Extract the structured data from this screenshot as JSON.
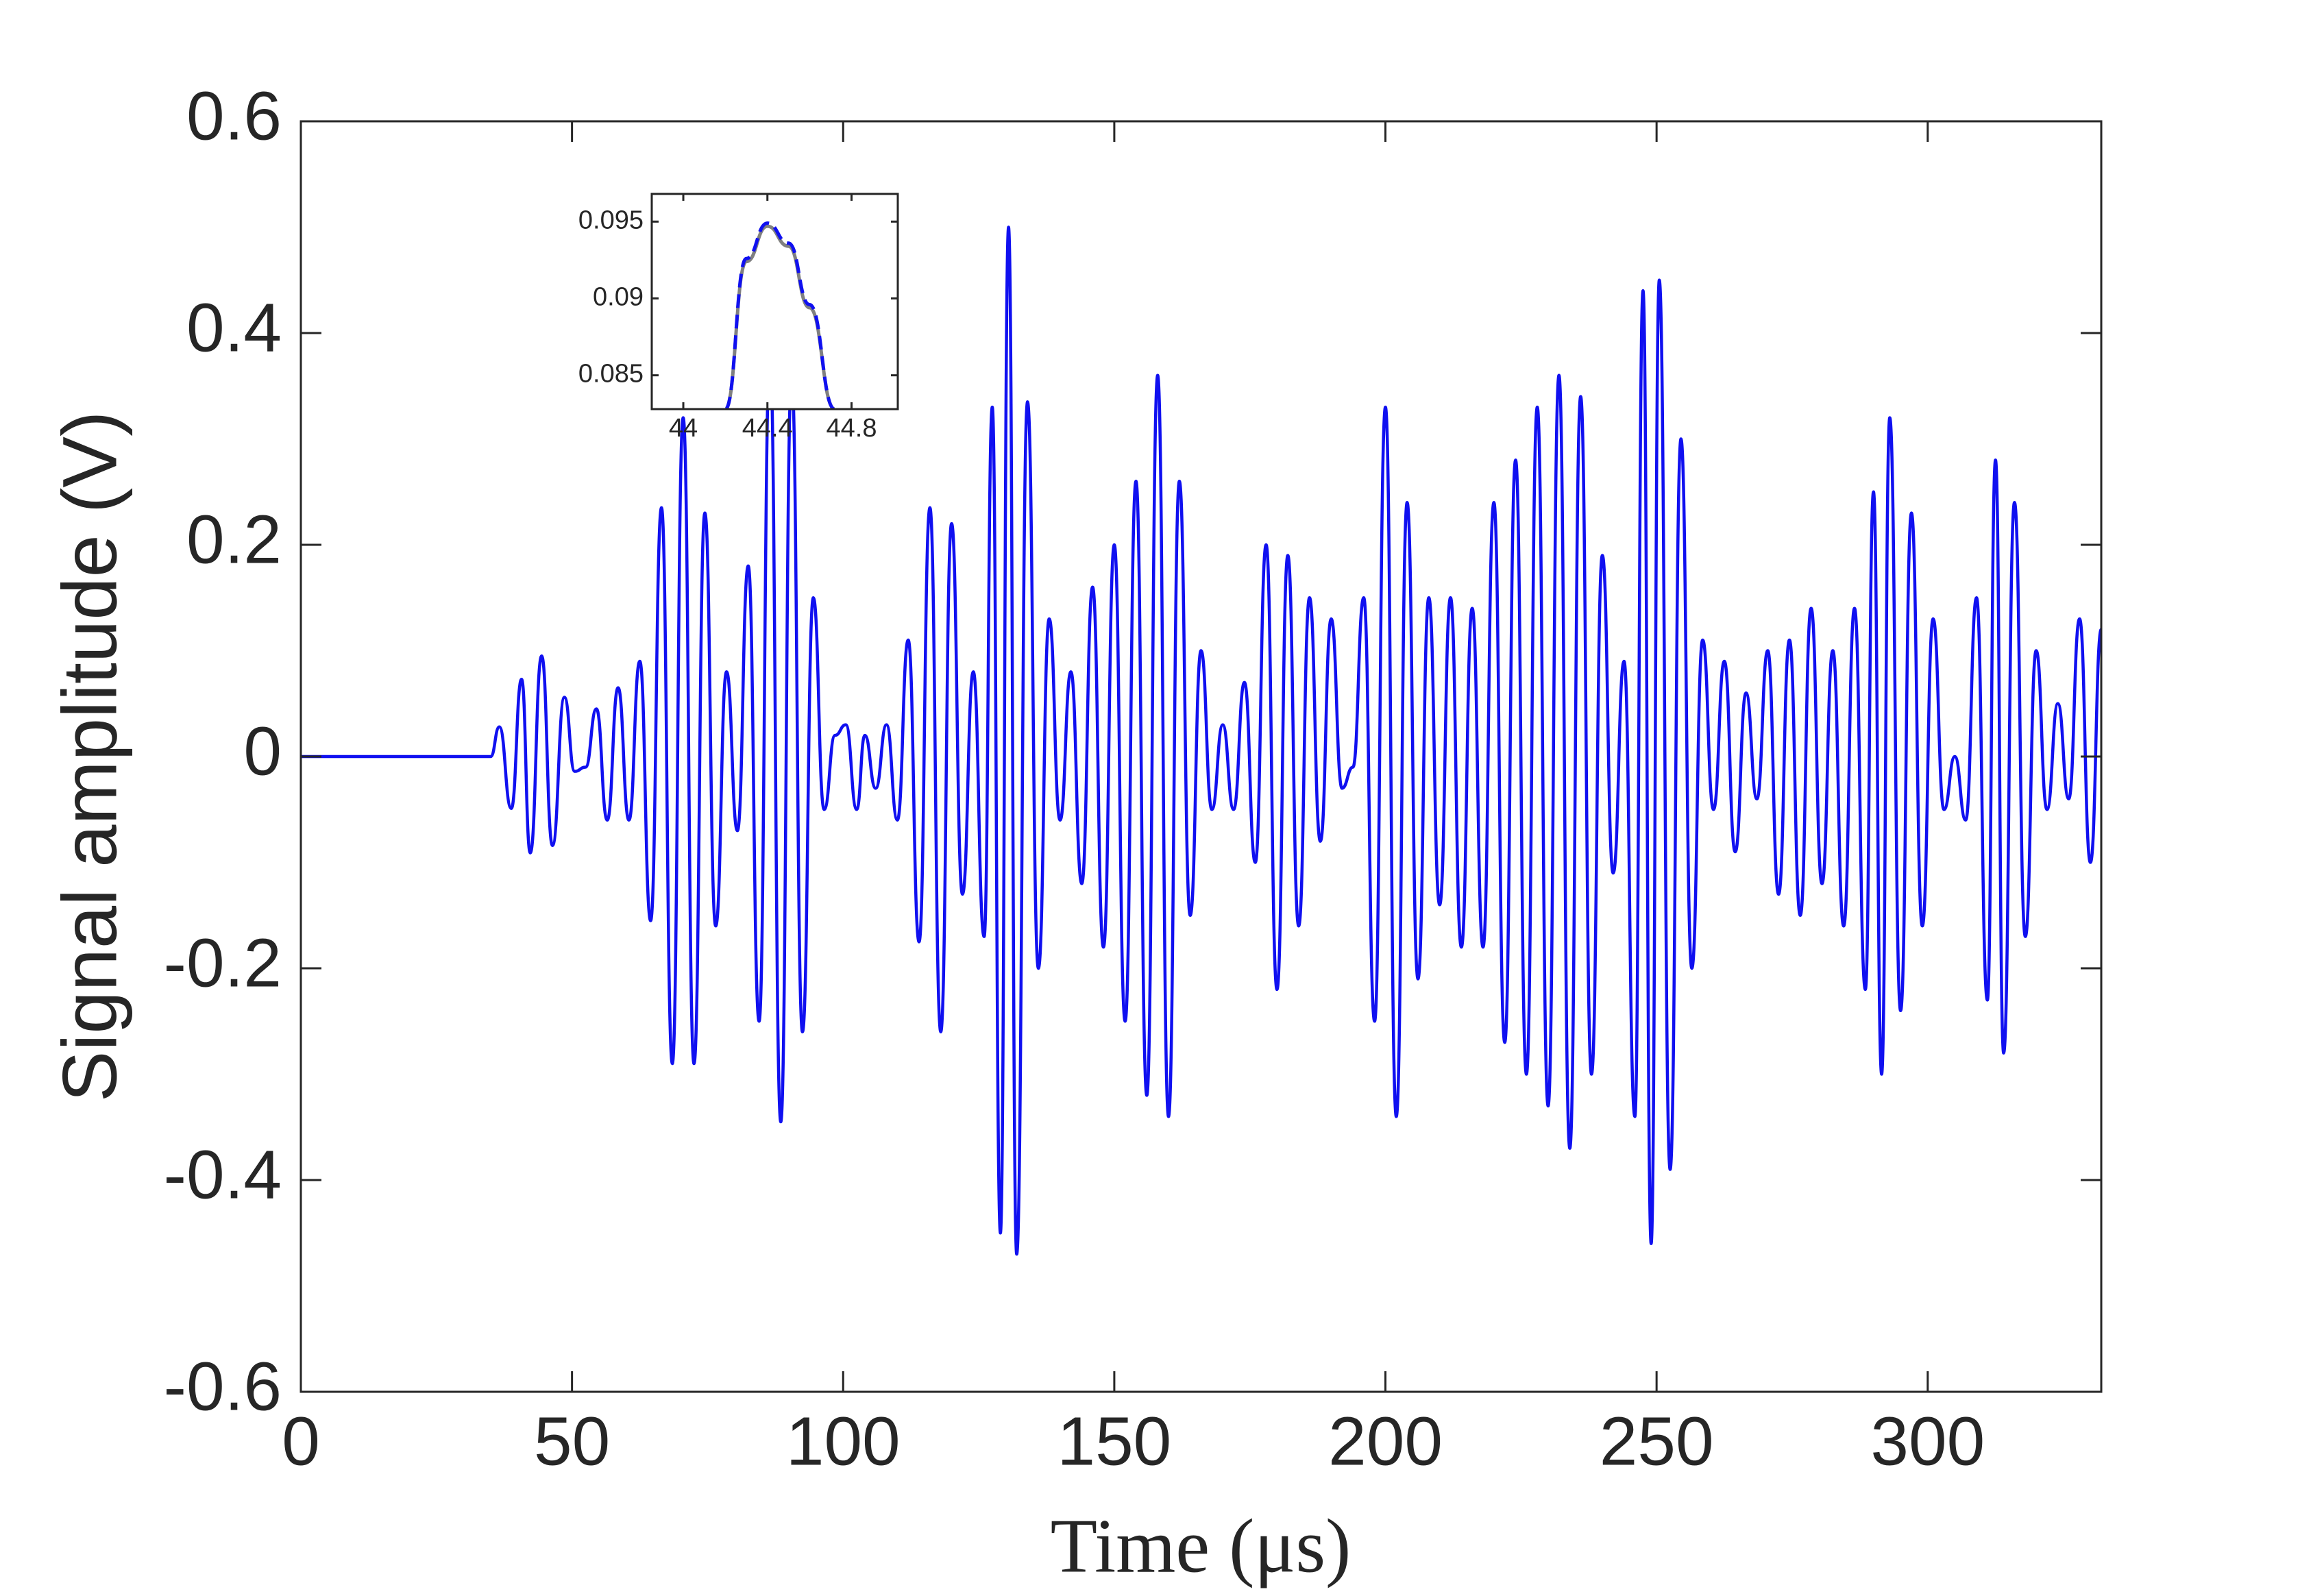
{
  "chart_data": [
    {
      "type": "line",
      "xlabel": "Time (μs)",
      "ylabel": "Signal amplitude (V)",
      "x": [
        0,
        35,
        36.6,
        38.8,
        40.7,
        42.3,
        44.4,
        46.4,
        48.6,
        50.5,
        52.5,
        54.5,
        56.5,
        58.5,
        60.5,
        62.5,
        64.5,
        66.5,
        68.5,
        70.5,
        72.5,
        74.5,
        76.5,
        78.5,
        80.5,
        82.5,
        84.5,
        86.5,
        88.5,
        90.5,
        92.5,
        94.5,
        96.5,
        98.5,
        100.5,
        102.5,
        104,
        106,
        108,
        110,
        112,
        114,
        116,
        118,
        120,
        122,
        124,
        126,
        127.5,
        129,
        130.5,
        132,
        134,
        136,
        138,
        140,
        142,
        144,
        146,
        148,
        150,
        152,
        154,
        156,
        158,
        160,
        162,
        164,
        166,
        168,
        170,
        172,
        174,
        176,
        178,
        180,
        182,
        184,
        186,
        188,
        190,
        192,
        194,
        196,
        198,
        200,
        202,
        204,
        206,
        208,
        210,
        212,
        214,
        216,
        218,
        220,
        222,
        224,
        226,
        228,
        230,
        232,
        234,
        236,
        238,
        240,
        242,
        244,
        246,
        247.5,
        249,
        250.5,
        252.5,
        254.5,
        256.5,
        258.5,
        260.5,
        262.5,
        264.5,
        266.5,
        268.5,
        270.5,
        272.5,
        274.5,
        276.5,
        278.5,
        280.5,
        282.5,
        284.5,
        286.5,
        288.5,
        290,
        291.5,
        293,
        295,
        297,
        299,
        301,
        303,
        305,
        307,
        309,
        311,
        312.5,
        314,
        316,
        318,
        320,
        322,
        324,
        326,
        328,
        330,
        332
      ],
      "series": [
        {
          "color": "#1010f0",
          "values": [
            0,
            0,
            0.028,
            -0.049,
            0.073,
            -0.091,
            0.095,
            -0.084,
            0.056,
            -0.014,
            -0.01,
            0.045,
            -0.06,
            0.065,
            -0.06,
            0.09,
            -0.155,
            0.235,
            -0.29,
            0.32,
            -0.29,
            0.23,
            -0.16,
            0.08,
            -0.07,
            0.18,
            -0.25,
            0.38,
            -0.345,
            0.36,
            -0.26,
            0.15,
            -0.05,
            0.02,
            0.03,
            -0.05,
            0.02,
            -0.03,
            0.03,
            -0.06,
            0.11,
            -0.175,
            0.235,
            -0.26,
            0.22,
            -0.13,
            0.08,
            -0.17,
            0.33,
            -0.45,
            0.5,
            -0.47,
            0.335,
            -0.2,
            0.13,
            -0.06,
            0.08,
            -0.12,
            0.16,
            -0.18,
            0.2,
            -0.25,
            0.26,
            -0.32,
            0.36,
            -0.34,
            0.26,
            -0.15,
            0.1,
            -0.05,
            0.03,
            -0.05,
            0.07,
            -0.1,
            0.2,
            -0.22,
            0.19,
            -0.16,
            0.15,
            -0.08,
            0.13,
            -0.03,
            -0.01,
            0.15,
            -0.25,
            0.33,
            -0.34,
            0.24,
            -0.21,
            0.15,
            -0.14,
            0.15,
            -0.18,
            0.14,
            -0.18,
            0.24,
            -0.27,
            0.28,
            -0.3,
            0.33,
            -0.33,
            0.36,
            -0.37,
            0.34,
            -0.3,
            0.19,
            -0.11,
            0.09,
            -0.34,
            0.44,
            -0.46,
            0.45,
            -0.39,
            0.3,
            -0.2,
            0.11,
            -0.05,
            0.09,
            -0.09,
            0.06,
            -0.04,
            0.1,
            -0.13,
            0.11,
            -0.15,
            0.14,
            -0.12,
            0.1,
            -0.16,
            0.14,
            -0.22,
            0.25,
            -0.3,
            0.32,
            -0.24,
            0.23,
            -0.16,
            0.13,
            -0.05,
            0,
            -0.06,
            0.15,
            -0.23,
            0.28,
            -0.28,
            0.24,
            -0.17,
            0.1,
            -0.05,
            0.05,
            -0.04,
            0.13,
            -0.1,
            0.12
          ]
        }
      ],
      "xlim": [
        0,
        332
      ],
      "ylim": [
        -0.6,
        0.6
      ],
      "xticks": [
        0,
        50,
        100,
        150,
        200,
        250,
        300
      ],
      "yticks": [
        -0.6,
        -0.4,
        -0.2,
        0,
        0.2,
        0.4,
        0.6
      ]
    },
    {
      "type": "line",
      "x": [
        44.2,
        44.3,
        44.4,
        44.5,
        44.6,
        44.72
      ],
      "series": [
        {
          "color": "#808080",
          "values": [
            0.0828,
            0.0924,
            0.0947,
            0.0934,
            0.0894,
            0.0828
          ]
        },
        {
          "color": "#1010f0",
          "dashed": true,
          "values": [
            0.0828,
            0.0926,
            0.0949,
            0.0936,
            0.0896,
            0.0828
          ]
        }
      ],
      "xlim": [
        43.85,
        45.02
      ],
      "ylim": [
        0.0828,
        0.0968
      ],
      "xticks": [
        44,
        44.4,
        44.8
      ],
      "yticks": [
        0.085,
        0.09,
        0.095
      ]
    }
  ]
}
